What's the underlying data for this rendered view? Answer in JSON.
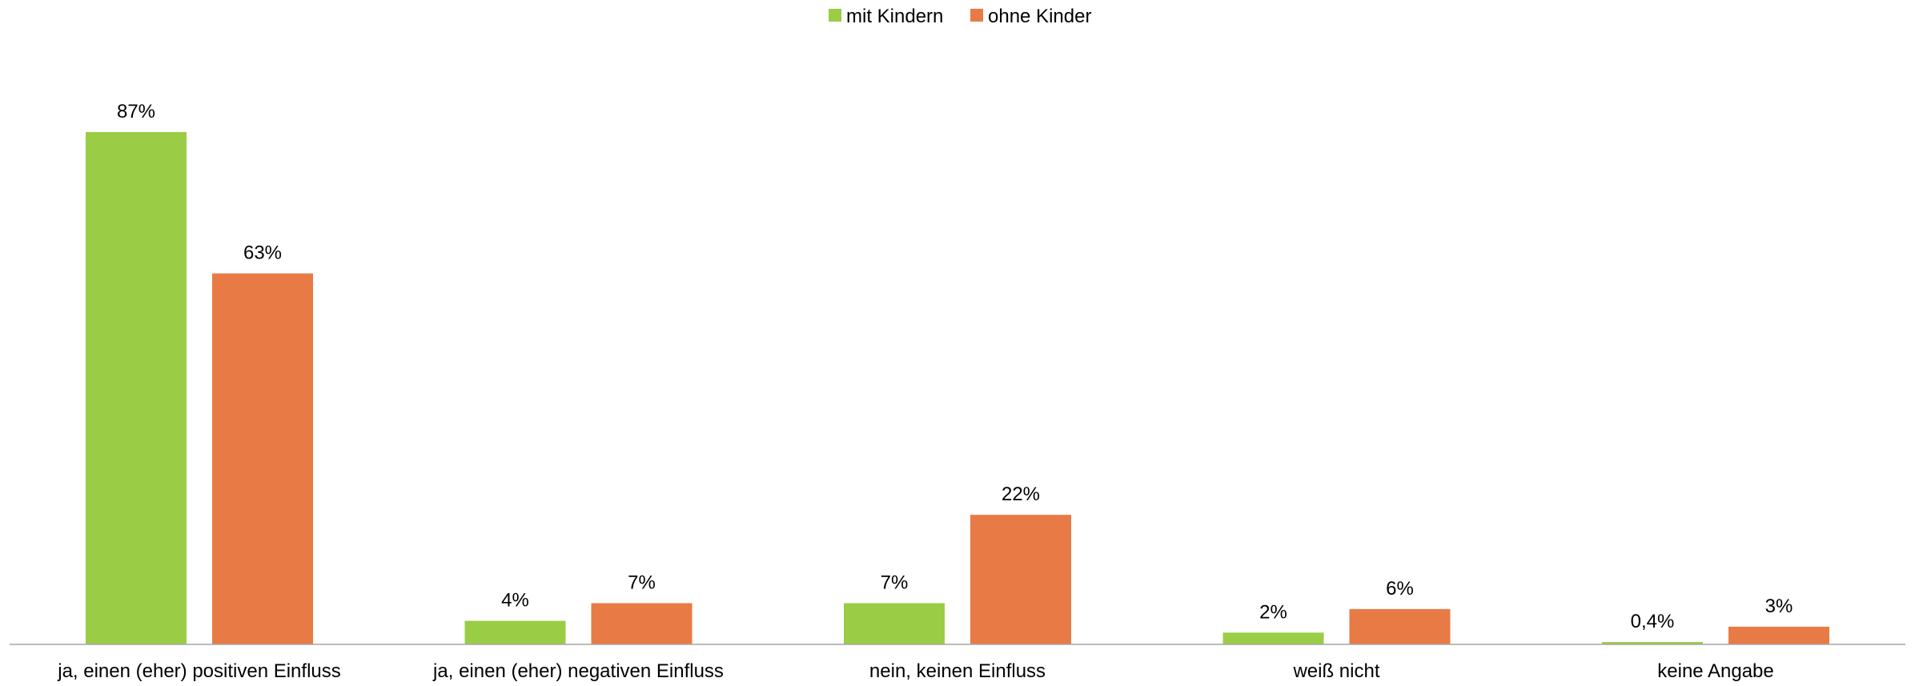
{
  "chart_data": {
    "type": "bar",
    "categories": [
      "ja, einen (eher) positiven Einfluss",
      "ja, einen (eher) negativen Einfluss",
      "nein, keinen Einfluss",
      "weiß nicht",
      "keine Angabe"
    ],
    "series": [
      {
        "name": "mit Kindern",
        "color": "#9ACD45",
        "values": [
          87,
          4,
          7,
          2,
          0.4
        ],
        "labels": [
          "87%",
          "4%",
          "7%",
          "2%",
          "0,4%"
        ]
      },
      {
        "name": "ohne Kinder",
        "color": "#E87B45",
        "values": [
          63,
          7,
          22,
          6,
          3
        ],
        "labels": [
          "63%",
          "7%",
          "22%",
          "6%",
          "3%"
        ]
      }
    ],
    "ylim": [
      0,
      100
    ],
    "grid": false,
    "legend": "top-center",
    "axis_color": "#A6A6A6"
  }
}
